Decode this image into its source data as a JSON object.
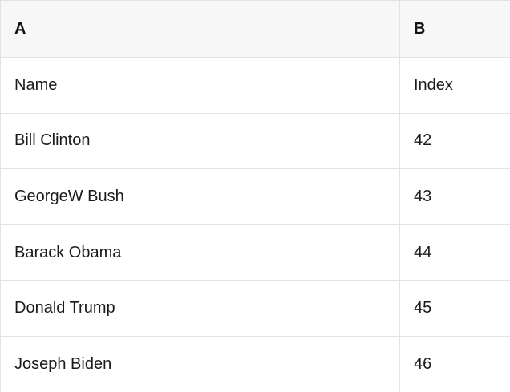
{
  "table": {
    "columns": [
      {
        "label": "A"
      },
      {
        "label": "B"
      }
    ],
    "rows": [
      {
        "a": "Name",
        "b": "Index"
      },
      {
        "a": "Bill Clinton",
        "b": "42"
      },
      {
        "a": "GeorgeW Bush",
        "b": "43"
      },
      {
        "a": "Barack Obama",
        "b": "44"
      },
      {
        "a": "Donald Trump",
        "b": "45"
      },
      {
        "a": "Joseph Biden",
        "b": "46"
      }
    ]
  },
  "colors": {
    "header_background": "#f7f7f7",
    "border": "#e2e2e2",
    "text": "#1a1a1a"
  }
}
